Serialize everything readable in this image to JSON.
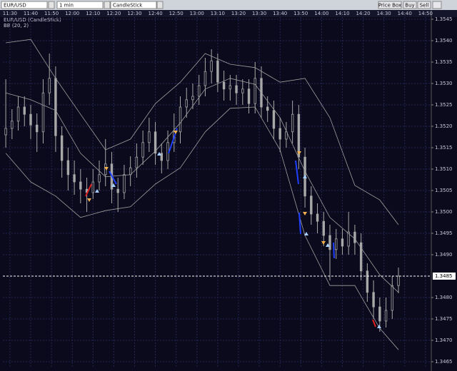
{
  "toolbar": {
    "symbol": "EUR/USD",
    "interval": "1 min",
    "chart_type": "CandleStick",
    "buttons": [
      "Price Box",
      "Buy",
      "Sell"
    ]
  },
  "chart_data": {
    "type": "candlestick",
    "title": "EUR/USD (CandleStick)",
    "indicator": "BB (20, 2)",
    "xlim": [
      686.6,
      892.8
    ],
    "xticks": [
      {
        "value": 690,
        "label": "11:30"
      },
      {
        "value": 700,
        "label": "11:40"
      },
      {
        "value": 710,
        "label": "11:50"
      },
      {
        "value": 720,
        "label": "12:00"
      },
      {
        "value": 730,
        "label": "12:10"
      },
      {
        "value": 740,
        "label": "12:20"
      },
      {
        "value": 750,
        "label": "12:30"
      },
      {
        "value": 760,
        "label": "12:40"
      },
      {
        "value": 770,
        "label": "12:50"
      },
      {
        "value": 780,
        "label": "13:00"
      },
      {
        "value": 790,
        "label": "13:10"
      },
      {
        "value": 800,
        "label": "13:20"
      },
      {
        "value": 810,
        "label": "13:30"
      },
      {
        "value": 820,
        "label": "13:40"
      },
      {
        "value": 830,
        "label": "13:50"
      },
      {
        "value": 840,
        "label": "14:00"
      },
      {
        "value": 850,
        "label": "14:10"
      },
      {
        "value": 860,
        "label": "14:20"
      },
      {
        "value": 870,
        "label": "14:30"
      },
      {
        "value": 880,
        "label": "14:40"
      },
      {
        "value": 890,
        "label": "14:50"
      }
    ],
    "ylim": [
      1.34635,
      1.35455
    ],
    "yticks": [
      1.3545,
      {
        "value": 1.354,
        "label": "1.3540"
      },
      1.3535,
      {
        "value": 1.353,
        "label": "1.3530"
      },
      1.3525,
      {
        "value": 1.352,
        "label": "1.3520"
      },
      1.3515,
      {
        "value": 1.351,
        "label": "1.3510"
      },
      1.3505,
      {
        "value": 1.35,
        "label": "1.3500"
      },
      1.3495,
      {
        "value": 1.349,
        "label": "1.3490"
      },
      {
        "value": 1.348,
        "label": "1.3480"
      },
      1.3475,
      {
        "value": 1.347,
        "label": "1.3470"
      },
      1.3465
    ],
    "last_price": {
      "value": 1.3485,
      "label": "1.3485"
    },
    "grid": true,
    "candle_color": "#a8a8a8",
    "bands_color": "#a0a0a0",
    "candles": {
      "x": [
        688,
        691,
        694,
        697,
        700,
        703,
        706,
        709,
        712,
        715,
        718,
        721,
        724,
        727,
        730,
        733,
        736,
        739,
        742,
        745,
        748,
        751,
        754,
        757,
        760,
        763,
        766,
        769,
        772,
        775,
        778,
        781,
        784,
        787,
        790,
        793,
        796,
        799,
        802,
        805,
        808,
        811,
        814,
        817,
        820,
        823,
        826,
        829,
        832,
        835,
        838,
        841,
        844,
        847,
        850,
        853,
        856,
        859,
        862,
        865,
        868,
        871,
        874,
        877
      ],
      "open": [
        1.3518,
        1.35195,
        1.35212,
        1.35245,
        1.35228,
        1.35203,
        1.35187,
        1.35278,
        1.35312,
        1.35178,
        1.3512,
        1.35087,
        1.3507,
        1.35053,
        1.35045,
        1.3507,
        1.35087,
        1.35112,
        1.35053,
        1.35045,
        1.35087,
        1.35103,
        1.35128,
        1.35162,
        1.35187,
        1.35137,
        1.3512,
        1.35162,
        1.35187,
        1.35245,
        1.35262,
        1.3527,
        1.35295,
        1.35328,
        1.35353,
        1.35303,
        1.35287,
        1.35295,
        1.35278,
        1.35287,
        1.35253,
        1.35312,
        1.35245,
        1.35237,
        1.35195,
        1.3517,
        1.35187,
        1.35228,
        1.35128,
        1.35037,
        1.34995,
        1.34978,
        1.34945,
        1.34912,
        1.34937,
        1.3492,
        1.34953,
        1.34928,
        1.34862,
        1.34812,
        1.34778,
        1.34745,
        1.3477,
        1.34828
      ],
      "high": [
        1.3531,
        1.3524,
        1.3527,
        1.3527,
        1.3525,
        1.3523,
        1.3531,
        1.3537,
        1.3534,
        1.352,
        1.3515,
        1.3512,
        1.351,
        1.3508,
        1.351,
        1.3512,
        1.3517,
        1.3514,
        1.3508,
        1.3511,
        1.3513,
        1.3516,
        1.3519,
        1.3522,
        1.3521,
        1.3516,
        1.3519,
        1.3523,
        1.3527,
        1.3529,
        1.353,
        1.3532,
        1.3536,
        1.3538,
        1.3537,
        1.3533,
        1.3532,
        1.3532,
        1.3531,
        1.3531,
        1.3535,
        1.3534,
        1.3527,
        1.3526,
        1.3522,
        1.3521,
        1.3526,
        1.3525,
        1.3515,
        1.3506,
        1.3502,
        1.35,
        1.3497,
        1.3496,
        1.3496,
        1.35,
        1.3497,
        1.3495,
        1.3488,
        1.3484,
        1.348,
        1.348,
        1.3485,
        1.3487
      ],
      "low": [
        1.3515,
        1.3517,
        1.3519,
        1.352,
        1.3517,
        1.3514,
        1.3516,
        1.3525,
        1.3514,
        1.3508,
        1.3505,
        1.3504,
        1.3502,
        1.35,
        1.3503,
        1.3505,
        1.3506,
        1.3502,
        1.35,
        1.3503,
        1.3506,
        1.3508,
        1.3511,
        1.3514,
        1.3511,
        1.3509,
        1.351,
        1.3514,
        1.3516,
        1.3522,
        1.3524,
        1.3525,
        1.3527,
        1.353,
        1.3528,
        1.3526,
        1.3526,
        1.3525,
        1.3525,
        1.3523,
        1.3523,
        1.3522,
        1.3521,
        1.3517,
        1.3514,
        1.3515,
        1.3516,
        1.351,
        1.3501,
        1.3497,
        1.3495,
        1.3492,
        1.3484,
        1.3489,
        1.349,
        1.349,
        1.349,
        1.3484,
        1.3479,
        1.3475,
        1.3472,
        1.3473,
        1.3475,
        1.3481
      ],
      "close": [
        1.35195,
        1.35212,
        1.35245,
        1.35228,
        1.35203,
        1.35187,
        1.35278,
        1.35312,
        1.35178,
        1.3512,
        1.35087,
        1.3507,
        1.35053,
        1.35045,
        1.3507,
        1.35087,
        1.35112,
        1.35053,
        1.35045,
        1.35087,
        1.35103,
        1.35128,
        1.35162,
        1.35187,
        1.35137,
        1.3512,
        1.35162,
        1.35187,
        1.35245,
        1.35262,
        1.3527,
        1.35295,
        1.35328,
        1.35353,
        1.35303,
        1.35287,
        1.35295,
        1.35278,
        1.35287,
        1.35253,
        1.35312,
        1.35245,
        1.35237,
        1.35195,
        1.3517,
        1.35187,
        1.35228,
        1.35128,
        1.35037,
        1.34995,
        1.34978,
        1.34945,
        1.34912,
        1.34937,
        1.3492,
        1.34953,
        1.34928,
        1.34862,
        1.34812,
        1.34778,
        1.34745,
        1.3477,
        1.34828,
        1.3485
      ]
    },
    "bands": {
      "x": [
        688,
        700,
        712,
        724,
        736,
        748,
        760,
        772,
        784,
        796,
        808,
        820,
        832,
        844,
        856,
        868,
        877
      ],
      "upper": [
        1.35395,
        1.35403,
        1.35312,
        1.35228,
        1.35145,
        1.3517,
        1.35253,
        1.35303,
        1.3537,
        1.35345,
        1.35337,
        1.35303,
        1.35312,
        1.3522,
        1.35062,
        1.35028,
        1.3497
      ],
      "middle": [
        1.35278,
        1.35262,
        1.35237,
        1.35137,
        1.35082,
        1.35087,
        1.35142,
        1.35208,
        1.35287,
        1.35312,
        1.35298,
        1.3522,
        1.35095,
        1.34987,
        1.34937,
        1.34853,
        1.34812
      ],
      "lower": [
        1.35137,
        1.3507,
        1.35037,
        1.34987,
        1.35003,
        1.35012,
        1.35065,
        1.35103,
        1.35187,
        1.35242,
        1.35245,
        1.35145,
        1.34945,
        1.34828,
        1.34828,
        1.34728,
        1.34678
      ]
    }
  }
}
